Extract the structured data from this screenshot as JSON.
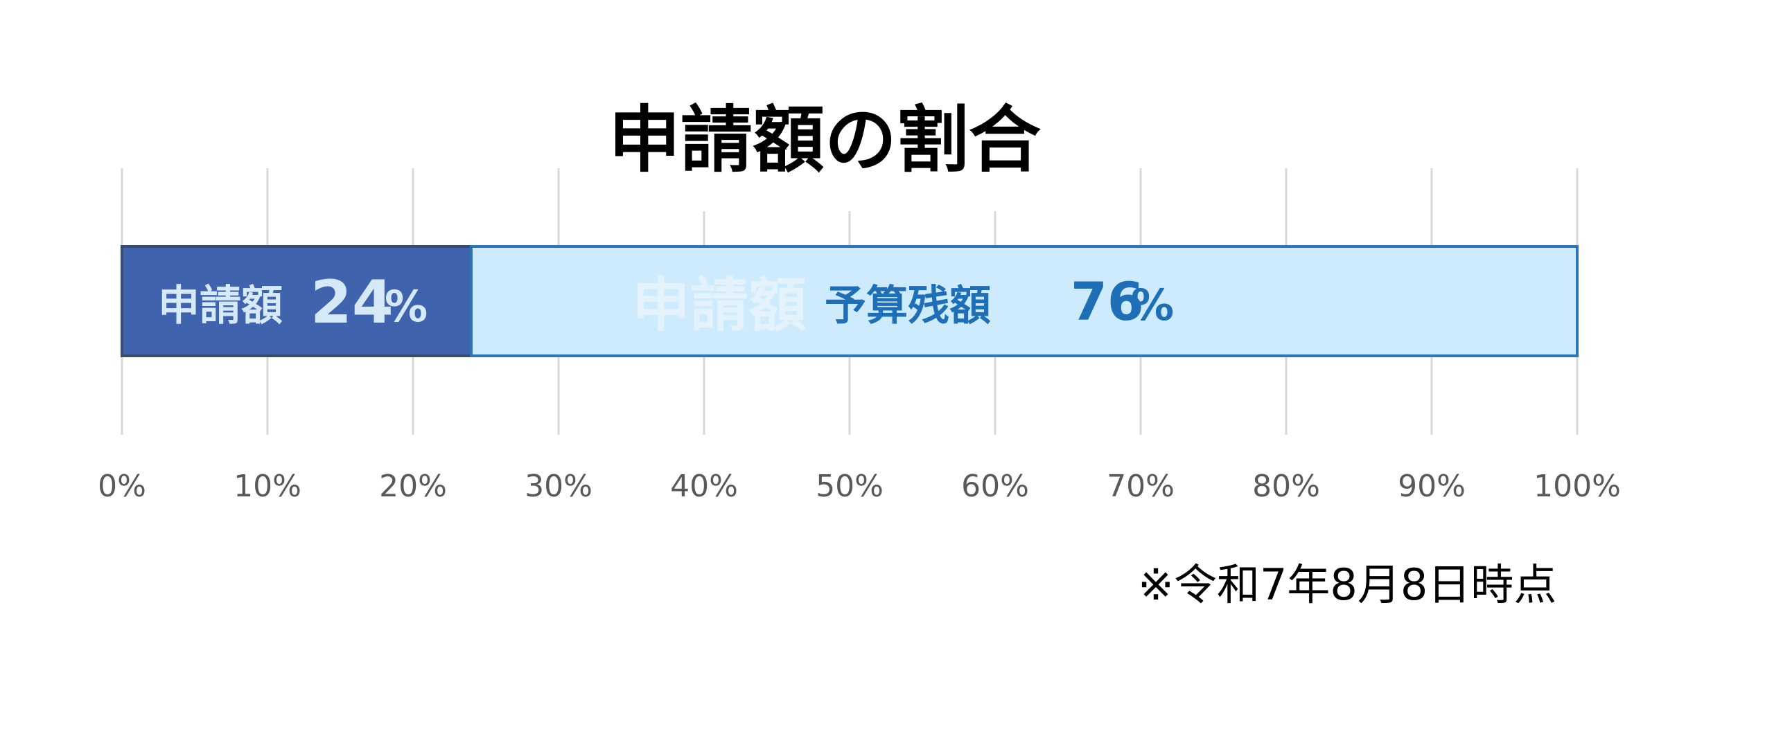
{
  "chart_data": {
    "type": "bar",
    "orientation": "horizontal",
    "stacked": true,
    "title": "申請額の割合",
    "xlim": [
      0,
      100
    ],
    "x_ticks": [
      "0%",
      "10%",
      "20%",
      "30%",
      "40%",
      "50%",
      "60%",
      "70%",
      "80%",
      "90%",
      "100%"
    ],
    "grid": true,
    "series": [
      {
        "name": "申請額",
        "value": 24,
        "label_name": "申請額",
        "label_value": "24",
        "label_unit": "%",
        "color": "#3F63AD",
        "border_color": "#374C70",
        "label_name_color": "#D6E9F8",
        "label_value_color": "#D6E9F8"
      },
      {
        "name": "予算残額",
        "value": 76,
        "label_ghost": "申請額",
        "label_name": "予算残額",
        "label_value": "76",
        "label_unit": "%",
        "color": "#CDEBFD",
        "border_color": "#2E75B6",
        "ghost_color": "#E3F2FB",
        "label_name_color": "#1F6FB7",
        "label_value_color": "#1F6FB7"
      }
    ],
    "note": "※令和7年8月8日時点",
    "colors": {
      "grid": "#D9D9D9",
      "tick_text": "#595959"
    }
  }
}
